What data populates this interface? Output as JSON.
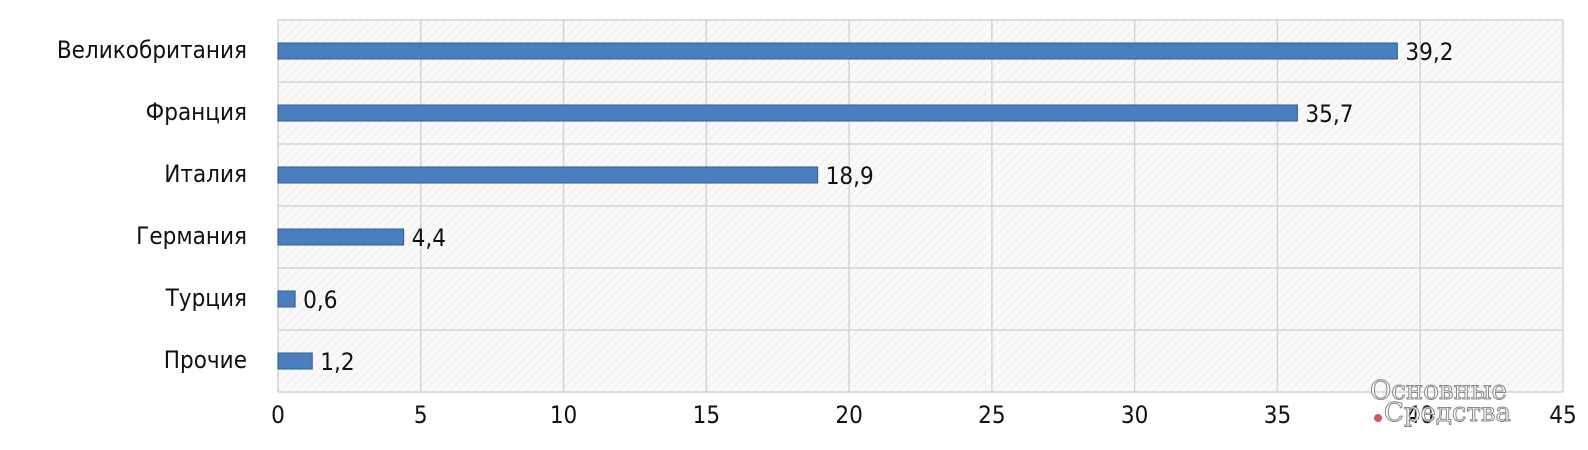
{
  "chart_data": {
    "type": "bar",
    "orientation": "horizontal",
    "categories": [
      "Великобритания",
      "Франция",
      "Италия",
      "Германия",
      "Турция",
      "Прочие"
    ],
    "values": [
      39.2,
      35.7,
      18.9,
      4.4,
      0.6,
      1.2
    ],
    "value_labels": [
      "39,2",
      "35,7",
      "18,9",
      "4,4",
      "0,6",
      "1,2"
    ],
    "color": "#4a7ebf",
    "xlim": [
      0,
      45
    ],
    "xticks": [
      0,
      5,
      10,
      15,
      20,
      25,
      30,
      35,
      40,
      45
    ],
    "grid": true,
    "watermark": [
      "Основные",
      "Средства"
    ]
  }
}
